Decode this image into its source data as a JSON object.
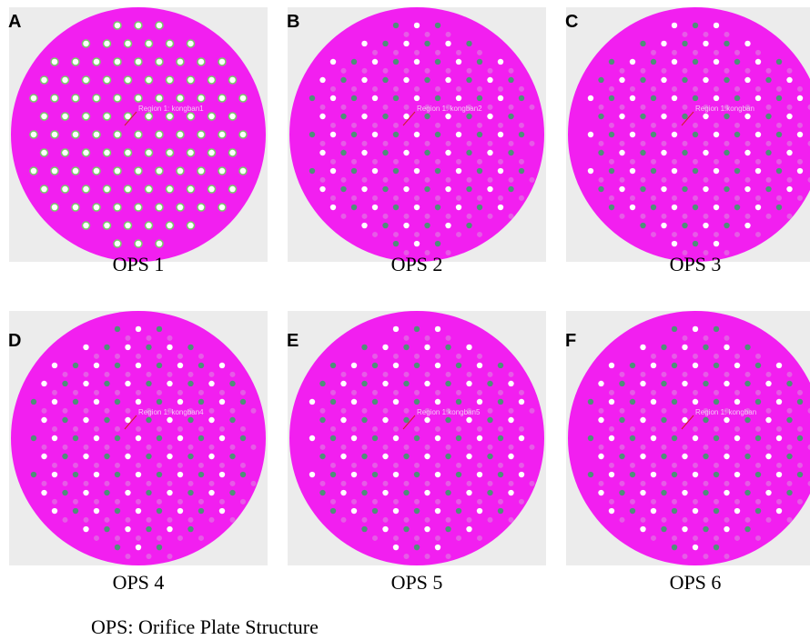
{
  "panels": [
    {
      "letter": "A",
      "caption": "OPS 1",
      "region_label": "Region 1: kongban1"
    },
    {
      "letter": "B",
      "caption": "OPS 2",
      "region_label": "Region 1: kongban2"
    },
    {
      "letter": "C",
      "caption": "OPS 3",
      "region_label": "Region 1:kongban"
    },
    {
      "letter": "D",
      "caption": "OPS 4",
      "region_label": "Region 1: kongban4"
    },
    {
      "letter": "E",
      "caption": "OPS 5",
      "region_label": "Region 1:kongban5"
    },
    {
      "letter": "F",
      "caption": "OPS 6",
      "region_label": "Region 1: kongban"
    }
  ],
  "footnote": "OPS: Orifice Plate Structure"
}
